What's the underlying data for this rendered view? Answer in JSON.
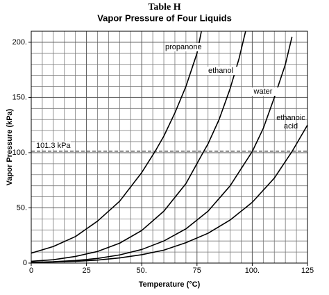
{
  "chart_data": {
    "type": "line",
    "title": "Table H",
    "subtitle": "Vapor Pressure of Four Liquids",
    "x_label": "Temperature (°C)",
    "y_label": "Vapor Pressure (kPa)",
    "xlim": [
      0,
      125
    ],
    "ylim": [
      0,
      210
    ],
    "xticks": [
      0,
      25,
      {
        "value": 50,
        "label": "50."
      },
      75,
      {
        "value": 100,
        "label": "100."
      },
      125
    ],
    "yticks": [
      0,
      {
        "value": 50,
        "label": "50."
      },
      {
        "value": 100,
        "label": "100."
      },
      {
        "value": 150,
        "label": "150."
      },
      {
        "value": 200,
        "label": "200."
      }
    ],
    "xminorticks": [
      5,
      10,
      15,
      20,
      30,
      35,
      40,
      45,
      55,
      60,
      65,
      70,
      80,
      85,
      90,
      95,
      105,
      110,
      115,
      120
    ],
    "yminorticks": [
      10,
      20,
      30,
      40,
      60,
      70,
      80,
      90,
      110,
      120,
      130,
      140,
      160,
      170,
      180,
      190,
      210
    ],
    "grid": true,
    "reference_line": {
      "text": "101.3 kPa",
      "value": 101.3
    },
    "series": [
      {
        "name": "propanone",
        "color": "#000000",
        "x": [
          0,
          10,
          20,
          30,
          40,
          50,
          56,
          60,
          65,
          70,
          75,
          77
        ],
        "values": [
          9,
          15,
          24,
          38,
          56,
          82,
          101,
          115,
          136,
          160,
          190,
          210
        ]
      },
      {
        "name": "ethanol",
        "color": "#000000",
        "x": [
          0,
          10,
          20,
          30,
          40,
          50,
          60,
          70,
          78,
          80,
          85,
          90,
          94,
          97
        ],
        "values": [
          1.6,
          3,
          6,
          10.5,
          18,
          29.5,
          47,
          72,
          101,
          108,
          130,
          158,
          185,
          210
        ]
      },
      {
        "name": "water",
        "color": "#000000",
        "x": [
          0,
          10,
          20,
          30,
          40,
          50,
          60,
          70,
          80,
          90,
          100,
          105,
          110,
          115,
          118
        ],
        "values": [
          0.6,
          1.2,
          2.3,
          4.2,
          7.4,
          12.3,
          20,
          31,
          47,
          70,
          101,
          122,
          150,
          180,
          205
        ]
      },
      {
        "name": "ethanoic acid",
        "color": "#000000",
        "x": [
          0,
          10,
          20,
          30,
          40,
          50,
          60,
          70,
          80,
          90,
          100,
          110,
          118,
          125
        ],
        "values": [
          0.5,
          1,
          1.6,
          2.7,
          4.7,
          7.6,
          11.7,
          18.5,
          27,
          39,
          55,
          77,
          101,
          125
        ]
      }
    ]
  }
}
